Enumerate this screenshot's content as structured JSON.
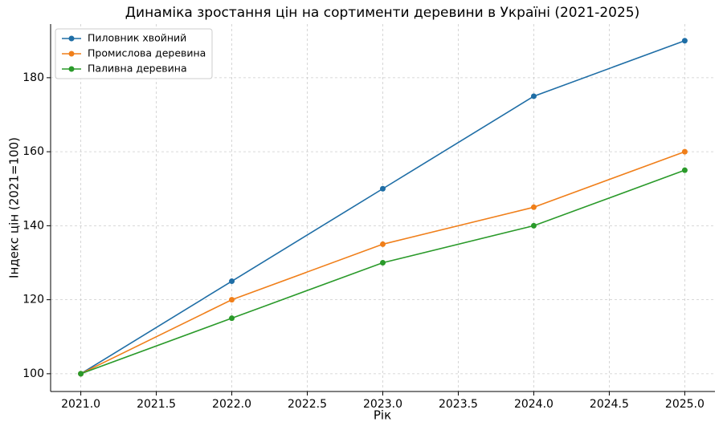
{
  "chart_data": {
    "type": "line",
    "title": "Динаміка зростання цін на сортименти деревини в Україні (2021-2025)",
    "x_label": "Рік",
    "y_label": "Індекс цін (2021=100)",
    "x": [
      2021,
      2022,
      2023,
      2024,
      2025
    ],
    "series": [
      {
        "name": "Пиловник хвойний",
        "color": "#1f6ea6",
        "values": [
          100,
          125,
          150,
          175,
          190
        ]
      },
      {
        "name": "Промислова деревина",
        "color": "#f07f1a",
        "values": [
          100,
          120,
          135,
          145,
          160
        ]
      },
      {
        "name": "Паливна деревина",
        "color": "#2a9a2a",
        "values": [
          100,
          115,
          130,
          140,
          155
        ]
      }
    ],
    "xlim": [
      2020.8,
      2025.2
    ],
    "xticks": [
      {
        "value": 2021,
        "label": "2021.0"
      },
      {
        "value": 2021.5,
        "label": "2021.5"
      },
      {
        "value": 2022,
        "label": "2022.0"
      },
      {
        "value": 2022.5,
        "label": "2022.5"
      },
      {
        "value": 2023,
        "label": "2023.0"
      },
      {
        "value": 2023.5,
        "label": "2023.5"
      },
      {
        "value": 2024,
        "label": "2024.0"
      },
      {
        "value": 2024.5,
        "label": "2024.5"
      },
      {
        "value": 2025,
        "label": "2025.0"
      }
    ],
    "ylim": [
      95.2,
      194.5
    ],
    "yticks": [
      100,
      120,
      140,
      160,
      180
    ],
    "grid": true,
    "legend": "upper-left"
  }
}
